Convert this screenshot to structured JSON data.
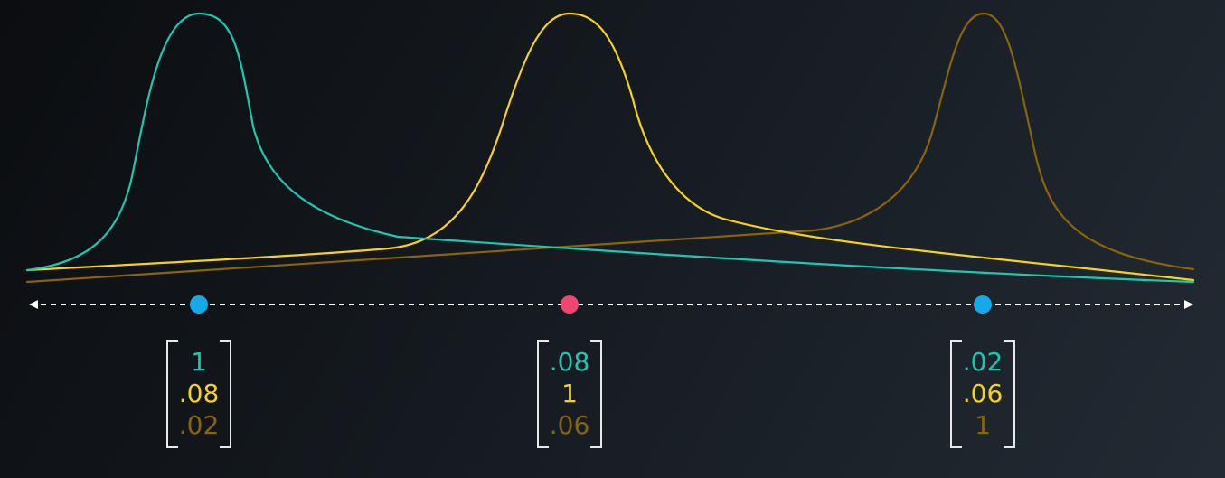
{
  "colors": {
    "teal": "#1bc9b0",
    "yellow": "#f6d21c",
    "olive": "#8a6408",
    "axis": "#ffffff",
    "point_blue": "#16a9e8",
    "point_pink": "#f0466f",
    "bracket": "#e8e8e8"
  },
  "curves": [
    {
      "id": "teal",
      "color_key": "teal"
    },
    {
      "id": "yellow",
      "color_key": "yellow"
    },
    {
      "id": "olive",
      "color_key": "olive"
    }
  ],
  "points": [
    {
      "id": "left",
      "color_key": "point_blue"
    },
    {
      "id": "middle",
      "color_key": "point_pink"
    },
    {
      "id": "right",
      "color_key": "point_blue"
    }
  ],
  "vectors": [
    {
      "id": "left",
      "values": [
        "1",
        ".08",
        ".02"
      ]
    },
    {
      "id": "middle",
      "values": [
        ".08",
        "1",
        ".06"
      ]
    },
    {
      "id": "right",
      "values": [
        ".02",
        ".06",
        "1"
      ]
    }
  ]
}
